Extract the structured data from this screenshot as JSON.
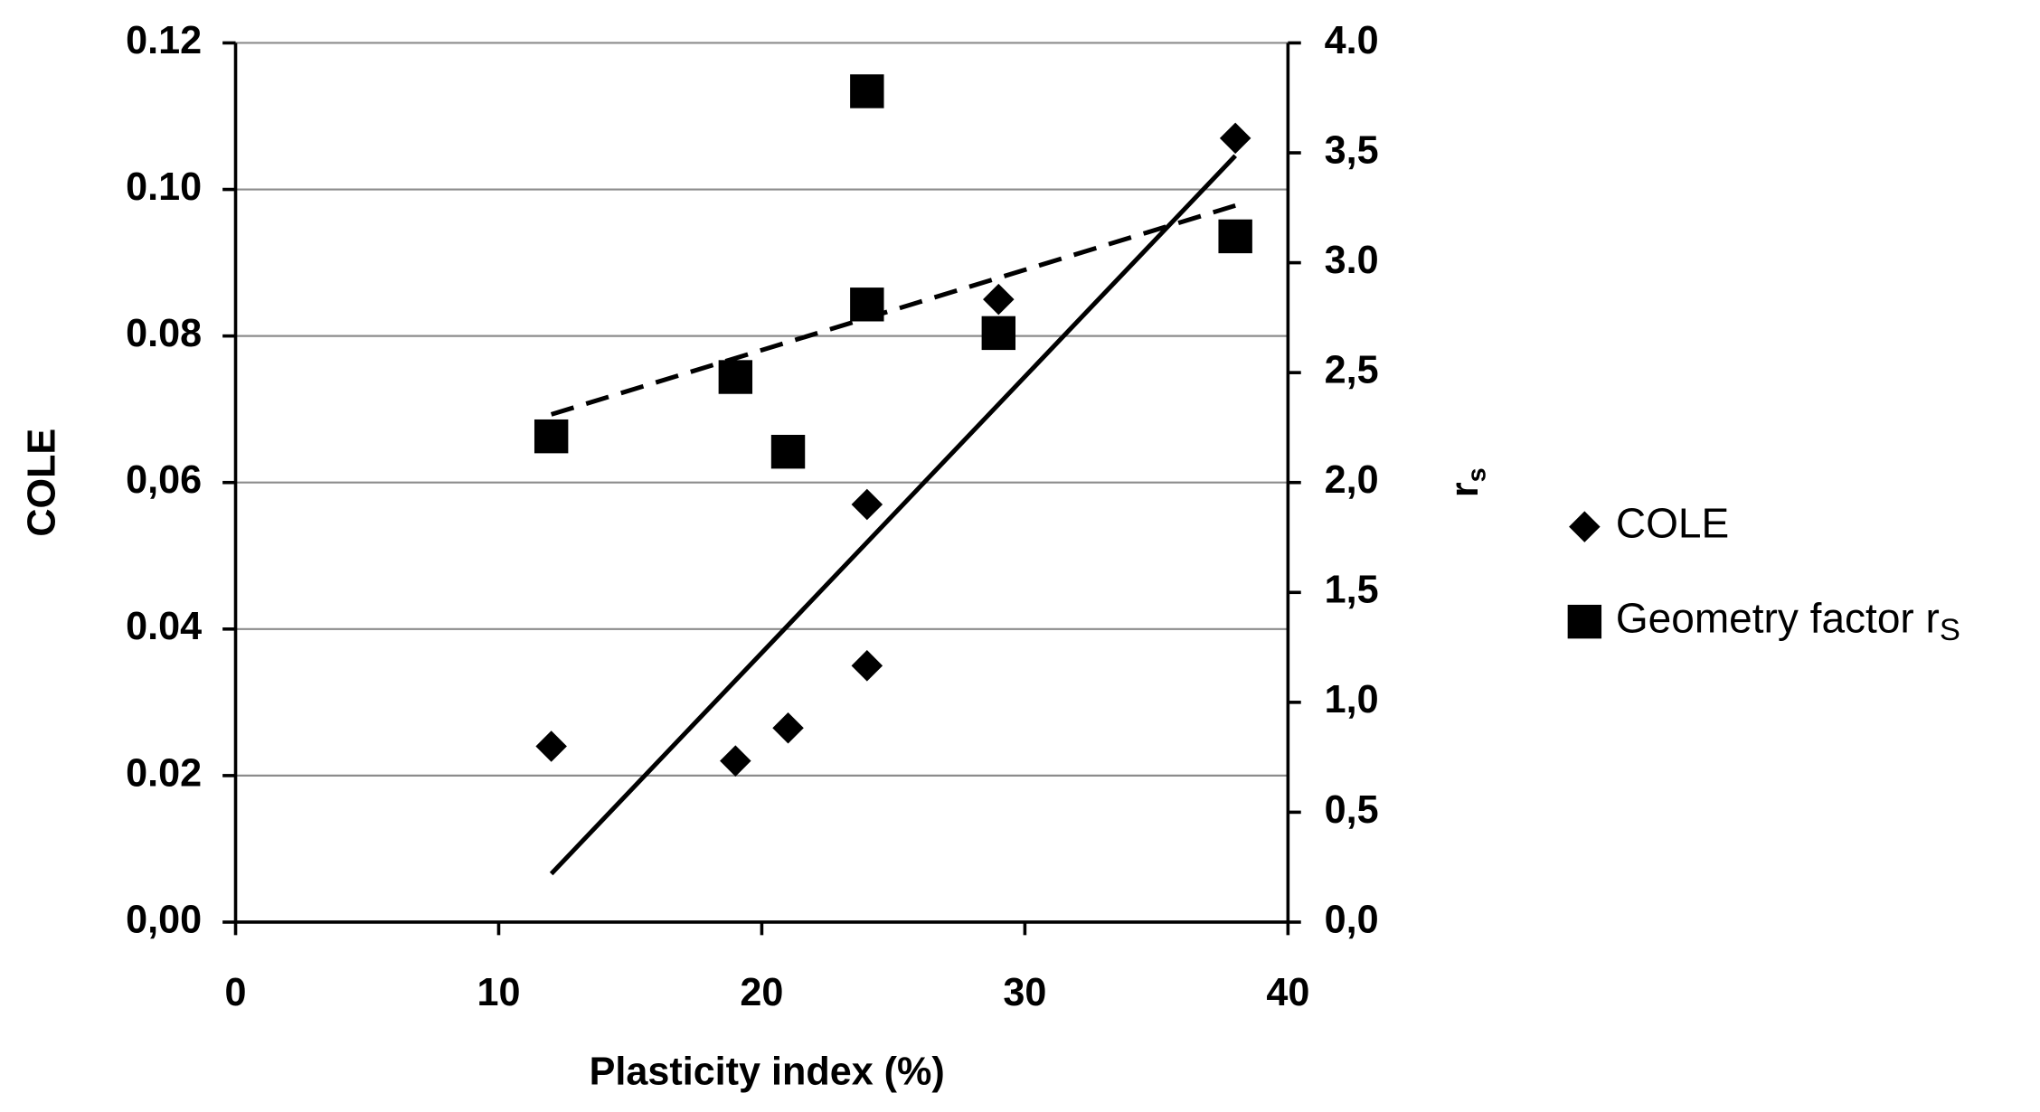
{
  "chart_data": {
    "type": "scatter",
    "xlabel": "Plasticity index (%)",
    "ylabel": "COLE",
    "y2label": "r",
    "y2label_sub": "s",
    "xlim": [
      0,
      40
    ],
    "xticks": [
      0,
      10,
      20,
      30,
      40
    ],
    "ylim": [
      0,
      0.12
    ],
    "yticks": [
      {
        "value": 0,
        "label": "0,00"
      },
      0.02,
      0.04,
      {
        "value": 0.06,
        "label": "0,06"
      },
      0.08,
      {
        "value": 0.1,
        "label": "0.10"
      },
      {
        "value": 0.12,
        "label": "0.12"
      }
    ],
    "y2lim": [
      0,
      4
    ],
    "y2ticks": [
      {
        "value": 0,
        "label": "0,0"
      },
      {
        "value": 0.5,
        "label": "0,5"
      },
      {
        "value": 1,
        "label": "1,0"
      },
      {
        "value": 1.5,
        "label": "1,5"
      },
      {
        "value": 2,
        "label": "2,0"
      },
      {
        "value": 2.5,
        "label": "2,5"
      },
      {
        "value": 3,
        "label": "3.0"
      },
      {
        "value": 3.5,
        "label": "3,5"
      },
      {
        "value": 4,
        "label": "4.0"
      }
    ],
    "grid": true,
    "legend": "right",
    "series": [
      {
        "name": "COLE",
        "color": "#000000",
        "marker": "diamond",
        "axis": "y",
        "x": [
          12,
          19,
          21,
          24,
          24,
          29,
          38
        ],
        "values": [
          0.024,
          0.022,
          0.0265,
          0.057,
          0.035,
          0.085,
          0.107
        ]
      },
      {
        "name": "Geometry factor r",
        "name_sub": "S",
        "color": "#000000",
        "marker": "square",
        "axis": "y2",
        "x": [
          12,
          19,
          21,
          24,
          24,
          29,
          38
        ],
        "values": [
          2.21,
          2.48,
          2.14,
          3.78,
          2.81,
          2.68,
          3.12
        ]
      }
    ],
    "trendlines": [
      {
        "axis": "y",
        "dash": "solid",
        "x": [
          12,
          38
        ],
        "values": [
          0.0066,
          0.1046
        ]
      },
      {
        "axis": "y2",
        "dash": "dashed",
        "x": [
          12,
          38
        ],
        "values": [
          2.31,
          3.26
        ]
      }
    ]
  }
}
